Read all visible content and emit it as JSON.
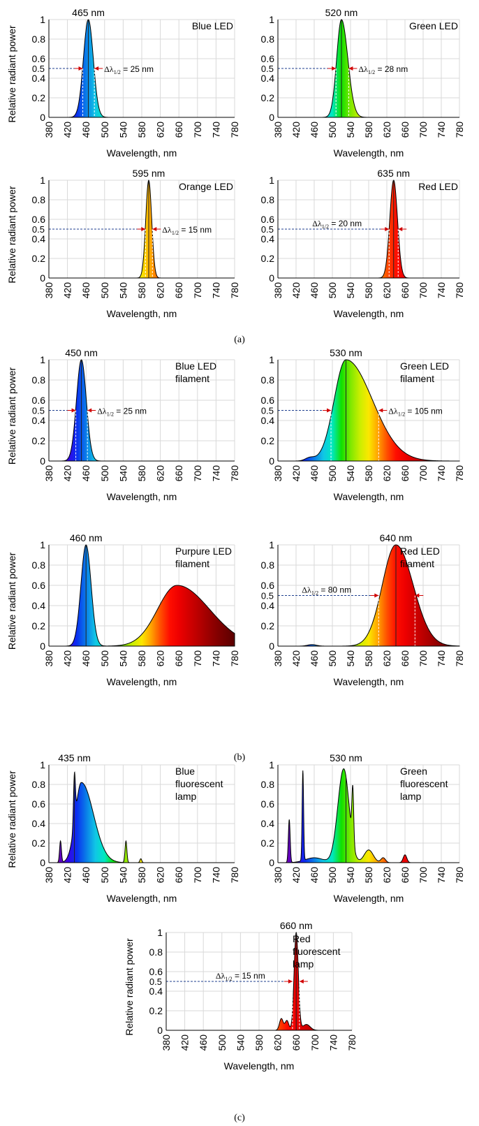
{
  "figure": {
    "panel_labels": [
      "(a)",
      "(b)",
      "(c)"
    ]
  },
  "chart_data": [
    {
      "type": "area",
      "title": "Blue LED",
      "peak_label": "465 nm",
      "peak_nm": 465,
      "fwhm_label": "= 25 nm",
      "half_label": "0.5",
      "xlabel": "Wavelength, nm",
      "ylabel": "Relative radiant power",
      "xlim": [
        380,
        780
      ],
      "ylim": [
        0,
        1
      ],
      "xticks": [
        380,
        420,
        460,
        500,
        540,
        580,
        620,
        660,
        700,
        740,
        780
      ],
      "yticks": [
        0,
        0.2,
        0.4,
        0.6,
        0.8,
        1
      ],
      "ytick_labels": [
        "0",
        "0.2",
        "0.4",
        "0.6",
        "0.8",
        "1"
      ],
      "grid": true,
      "peaks": [
        {
          "center": 465,
          "height": 1.0,
          "sigma": 10.6
        }
      ],
      "fwhm_range": [
        453,
        478
      ]
    },
    {
      "type": "area",
      "title": "Green LED",
      "peak_label": "520 nm",
      "peak_nm": 520,
      "fwhm_label": "= 28 nm",
      "half_label": "0.5",
      "xlabel": "Wavelength, nm",
      "ylabel": "",
      "xlim": [
        380,
        780
      ],
      "ylim": [
        0,
        1
      ],
      "xticks": [
        380,
        420,
        460,
        500,
        540,
        580,
        620,
        660,
        700,
        740,
        780
      ],
      "yticks": [
        0,
        0.2,
        0.4,
        0.6,
        0.8,
        1
      ],
      "ytick_labels": [
        "0",
        "0.2",
        "0.4",
        "0.6",
        "0.8",
        "1"
      ],
      "grid": true,
      "peaks": [
        {
          "center": 520,
          "height": 1.0,
          "sigma": 10.5,
          "sigma_right": 14
        }
      ],
      "fwhm_range": [
        508,
        536
      ]
    },
    {
      "type": "area",
      "title": "Orange LED",
      "peak_label": "595 nm",
      "peak_nm": 595,
      "fwhm_label": "= 15 nm",
      "half_label": "0.5",
      "xlabel": "Wavelength, nm",
      "ylabel": "Relative radiant power",
      "xlim": [
        380,
        780
      ],
      "ylim": [
        0,
        1
      ],
      "xticks": [
        380,
        420,
        460,
        500,
        540,
        580,
        620,
        660,
        700,
        740,
        780
      ],
      "yticks": [
        0,
        0.2,
        0.4,
        0.6,
        0.8,
        1
      ],
      "ytick_labels": [
        "0",
        "0.2",
        "0.4",
        "0.6",
        "0.8",
        "1"
      ],
      "grid": true,
      "peaks": [
        {
          "center": 595,
          "height": 1.0,
          "sigma": 6.4
        }
      ],
      "fwhm_range": [
        588,
        603
      ]
    },
    {
      "type": "area",
      "title": "Red LED",
      "peak_label": "635 nm",
      "peak_nm": 635,
      "fwhm_label": "= 20 nm",
      "half_label": "0.5",
      "xlabel": "Wavelength, nm",
      "ylabel": "",
      "xlim": [
        380,
        780
      ],
      "ylim": [
        0,
        1
      ],
      "xticks": [
        380,
        420,
        460,
        500,
        540,
        580,
        620,
        660,
        700,
        740,
        780
      ],
      "yticks": [
        0,
        0.2,
        0.4,
        0.6,
        0.8,
        1
      ],
      "ytick_labels": [
        "0",
        "0.2",
        "0.4",
        "0.6",
        "0.8",
        "1"
      ],
      "grid": true,
      "peaks": [
        {
          "center": 635,
          "height": 1.0,
          "sigma": 8.5
        }
      ],
      "fwhm_range": [
        625,
        645
      ]
    },
    {
      "type": "area",
      "title": "Blue LED filament",
      "title_lines": [
        "Blue LED",
        "filament"
      ],
      "peak_label": "450 nm",
      "peak_nm": 450,
      "fwhm_label": "= 25 nm",
      "half_label": "0.5",
      "xlabel": "Wavelength, nm",
      "ylabel": "Relative radiant power",
      "xlim": [
        380,
        780
      ],
      "ylim": [
        0,
        1
      ],
      "xticks": [
        380,
        420,
        460,
        500,
        540,
        580,
        620,
        660,
        700,
        740,
        780
      ],
      "yticks": [
        0,
        0.2,
        0.4,
        0.6,
        0.8,
        1
      ],
      "ytick_labels": [
        "0",
        "0.2",
        "0.4",
        "0.6",
        "0.8",
        "1"
      ],
      "grid": true,
      "peaks": [
        {
          "center": 450,
          "height": 1.0,
          "sigma": 10.6
        }
      ],
      "fwhm_range": [
        438,
        463
      ]
    },
    {
      "type": "area",
      "title": "Green LED filament",
      "title_lines": [
        "Green LED",
        "filament"
      ],
      "peak_label": "530 nm",
      "peak_nm": 530,
      "fwhm_label": "= 105 nm",
      "half_label": "0.5",
      "xlabel": "Wavelength, nm",
      "ylabel": "",
      "xlim": [
        380,
        780
      ],
      "ylim": [
        0,
        1
      ],
      "xticks": [
        380,
        420,
        460,
        500,
        540,
        580,
        620,
        660,
        700,
        740,
        780
      ],
      "yticks": [
        0,
        0.2,
        0.4,
        0.6,
        0.8,
        1
      ],
      "ytick_labels": [
        "0",
        "0.2",
        "0.4",
        "0.6",
        "0.8",
        "1"
      ],
      "grid": true,
      "peaks": [
        {
          "center": 530,
          "height": 1.0,
          "sigma": 26,
          "sigma_right": 58
        },
        {
          "center": 450,
          "height": 0.03,
          "sigma": 10
        }
      ],
      "fwhm_range": [
        497,
        602
      ]
    },
    {
      "type": "area",
      "title": "Purpure LED filament",
      "title_lines": [
        "Purpure LED",
        "filament"
      ],
      "peak_label": "460 nm",
      "peak_nm": 460,
      "fwhm_label": "",
      "half_label": "",
      "xlabel": "Wavelength, nm",
      "ylabel": "Relative radiant power",
      "xlim": [
        380,
        780
      ],
      "ylim": [
        0,
        1
      ],
      "xticks": [
        380,
        420,
        460,
        500,
        540,
        580,
        620,
        660,
        700,
        740,
        780
      ],
      "yticks": [
        0,
        0.2,
        0.4,
        0.6,
        0.8,
        1
      ],
      "ytick_labels": [
        "0",
        "0.2",
        "0.4",
        "0.6",
        "0.8",
        "1"
      ],
      "grid": true,
      "peaks": [
        {
          "center": 460,
          "height": 1.0,
          "sigma": 11
        },
        {
          "center": 656,
          "height": 0.6,
          "sigma": 42,
          "sigma_right": 70
        }
      ],
      "fwhm_range": null
    },
    {
      "type": "area",
      "title": "Red LED filament",
      "title_lines": [
        "Red LED",
        "filament"
      ],
      "peak_label": "640 nm",
      "peak_nm": 640,
      "fwhm_label": "= 80 nm",
      "half_label": "0.5",
      "xlabel": "Wavelength, nm",
      "ylabel": "",
      "xlim": [
        380,
        780
      ],
      "ylim": [
        0,
        1
      ],
      "xticks": [
        380,
        420,
        460,
        500,
        540,
        580,
        620,
        660,
        700,
        740,
        780
      ],
      "yticks": [
        0,
        0.2,
        0.4,
        0.6,
        0.8,
        1
      ],
      "ytick_labels": [
        "0",
        "0.2",
        "0.4",
        "0.6",
        "0.8",
        "1"
      ],
      "grid": true,
      "peaks": [
        {
          "center": 640,
          "height": 1.0,
          "sigma": 30,
          "sigma_right": 38
        },
        {
          "center": 455,
          "height": 0.015,
          "sigma": 10
        }
      ],
      "fwhm_range": [
        602,
        682
      ]
    },
    {
      "type": "area",
      "title": "Blue fluorescent lamp",
      "title_lines": [
        "Blue",
        "fluorescent",
        "lamp"
      ],
      "peak_label": "435 nm",
      "peak_nm": 435,
      "fwhm_label": "",
      "half_label": "",
      "xlabel": "Wavelength, nm",
      "ylabel": "Relative radiant power",
      "xlim": [
        380,
        780
      ],
      "ylim": [
        0,
        1
      ],
      "xticks": [
        380,
        420,
        460,
        500,
        540,
        580,
        620,
        660,
        700,
        740,
        780
      ],
      "yticks": [
        0,
        0.2,
        0.4,
        0.6,
        0.8,
        1
      ],
      "ytick_labels": [
        "0",
        "0.2",
        "0.4",
        "0.6",
        "0.8",
        "1"
      ],
      "grid": true,
      "peaks": [
        {
          "center": 450,
          "height": 0.82,
          "sigma": 13,
          "sigma_right": 26
        },
        {
          "center": 435,
          "height": 0.5,
          "sigma": 2
        },
        {
          "center": 405,
          "height": 0.22,
          "sigma": 2
        },
        {
          "center": 546,
          "height": 0.22,
          "sigma": 2
        },
        {
          "center": 578,
          "height": 0.04,
          "sigma": 2
        }
      ],
      "fwhm_range": null
    },
    {
      "type": "area",
      "title": "Green fluorescent lamp",
      "title_lines": [
        "Green",
        "fluorescent",
        "lamp"
      ],
      "peak_label": "530 nm",
      "peak_nm": 530,
      "fwhm_label": "",
      "half_label": "",
      "xlabel": "Wavelength, nm",
      "ylabel": "",
      "xlim": [
        380,
        780
      ],
      "ylim": [
        0,
        1
      ],
      "xticks": [
        380,
        420,
        460,
        500,
        540,
        580,
        620,
        660,
        700,
        740,
        780
      ],
      "yticks": [
        0,
        0.2,
        0.4,
        0.6,
        0.8,
        1
      ],
      "ytick_labels": [
        "0",
        "0.2",
        "0.4",
        "0.6",
        "0.8",
        "1"
      ],
      "grid": true,
      "peaks": [
        {
          "center": 525,
          "height": 0.96,
          "sigma": 13,
          "sigma_right": 12
        },
        {
          "center": 545,
          "height": 0.55,
          "sigma": 2
        },
        {
          "center": 405,
          "height": 0.44,
          "sigma": 2
        },
        {
          "center": 435,
          "height": 0.92,
          "sigma": 1.6
        },
        {
          "center": 460,
          "height": 0.05,
          "sigma": 20
        },
        {
          "center": 580,
          "height": 0.13,
          "sigma": 10
        },
        {
          "center": 612,
          "height": 0.05,
          "sigma": 5
        },
        {
          "center": 660,
          "height": 0.08,
          "sigma": 4
        }
      ],
      "fwhm_range": null
    },
    {
      "type": "area",
      "title": "Red fluorescent lamp",
      "title_lines": [
        "Red",
        "fluorescent",
        "lamp"
      ],
      "peak_label": "660 nm",
      "peak_nm": 660,
      "fwhm_label": "= 15 nm",
      "half_label": "0.5",
      "xlabel": "Wavelength, nm",
      "ylabel": "Relative radiant power",
      "xlim": [
        380,
        780
      ],
      "ylim": [
        0,
        1
      ],
      "xticks": [
        380,
        420,
        460,
        500,
        540,
        580,
        620,
        660,
        700,
        740,
        780
      ],
      "yticks": [
        0,
        0.2,
        0.4,
        0.6,
        0.8,
        1
      ],
      "ytick_labels": [
        "0",
        "0.2",
        "0.4",
        "0.6",
        "0.8",
        "1"
      ],
      "grid": true,
      "peaks": [
        {
          "center": 660,
          "height": 1.0,
          "sigma": 4.5
        },
        {
          "center": 628,
          "height": 0.12,
          "sigma": 4
        },
        {
          "center": 640,
          "height": 0.1,
          "sigma": 4
        },
        {
          "center": 682,
          "height": 0.06,
          "sigma": 8
        }
      ],
      "fwhm_range": [
        652,
        667
      ]
    }
  ]
}
